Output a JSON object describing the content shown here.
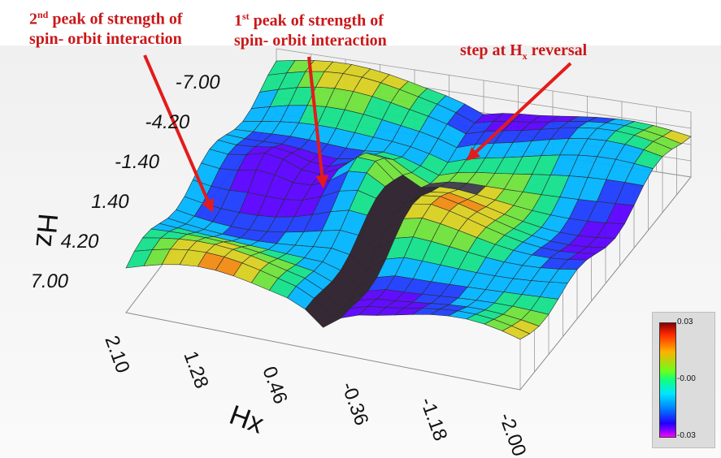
{
  "annotations": {
    "second_peak": {
      "sup": "nd",
      "line1_start": "2",
      "line1_end": " peak of strength of",
      "line2": "spin- orbit interaction"
    },
    "first_peak": {
      "sup": "st",
      "line1_start": "1",
      "line1_end": " peak of strength of",
      "line2": "spin- orbit interaction"
    },
    "step": {
      "text_start": "step at H",
      "sub": "x",
      "text_end": " reversal"
    },
    "color": "#d01a1a"
  },
  "chart_data": {
    "type": "surface",
    "xlabel": "Hx",
    "ylabel": "Hz",
    "x_ticks": [
      "2.10",
      "1.28",
      "0.46",
      "-0.36",
      "-1.18",
      "-2.00"
    ],
    "y_ticks": [
      "-7.00",
      "-4.20",
      "-1.40",
      "1.40",
      "4.20",
      "7.00"
    ],
    "xlim": [
      2.1,
      -2.0
    ],
    "ylim": [
      -7.0,
      7.0
    ],
    "colorbar": {
      "labels": [
        "0.03",
        "-0.00",
        "-0.03"
      ],
      "range": [
        -0.03,
        0.03
      ]
    },
    "features": [
      {
        "name": "2nd peak of strength of spin- orbit interaction"
      },
      {
        "name": "1st peak of strength of spin- orbit interaction"
      },
      {
        "name": "step at Hx reversal"
      }
    ]
  }
}
